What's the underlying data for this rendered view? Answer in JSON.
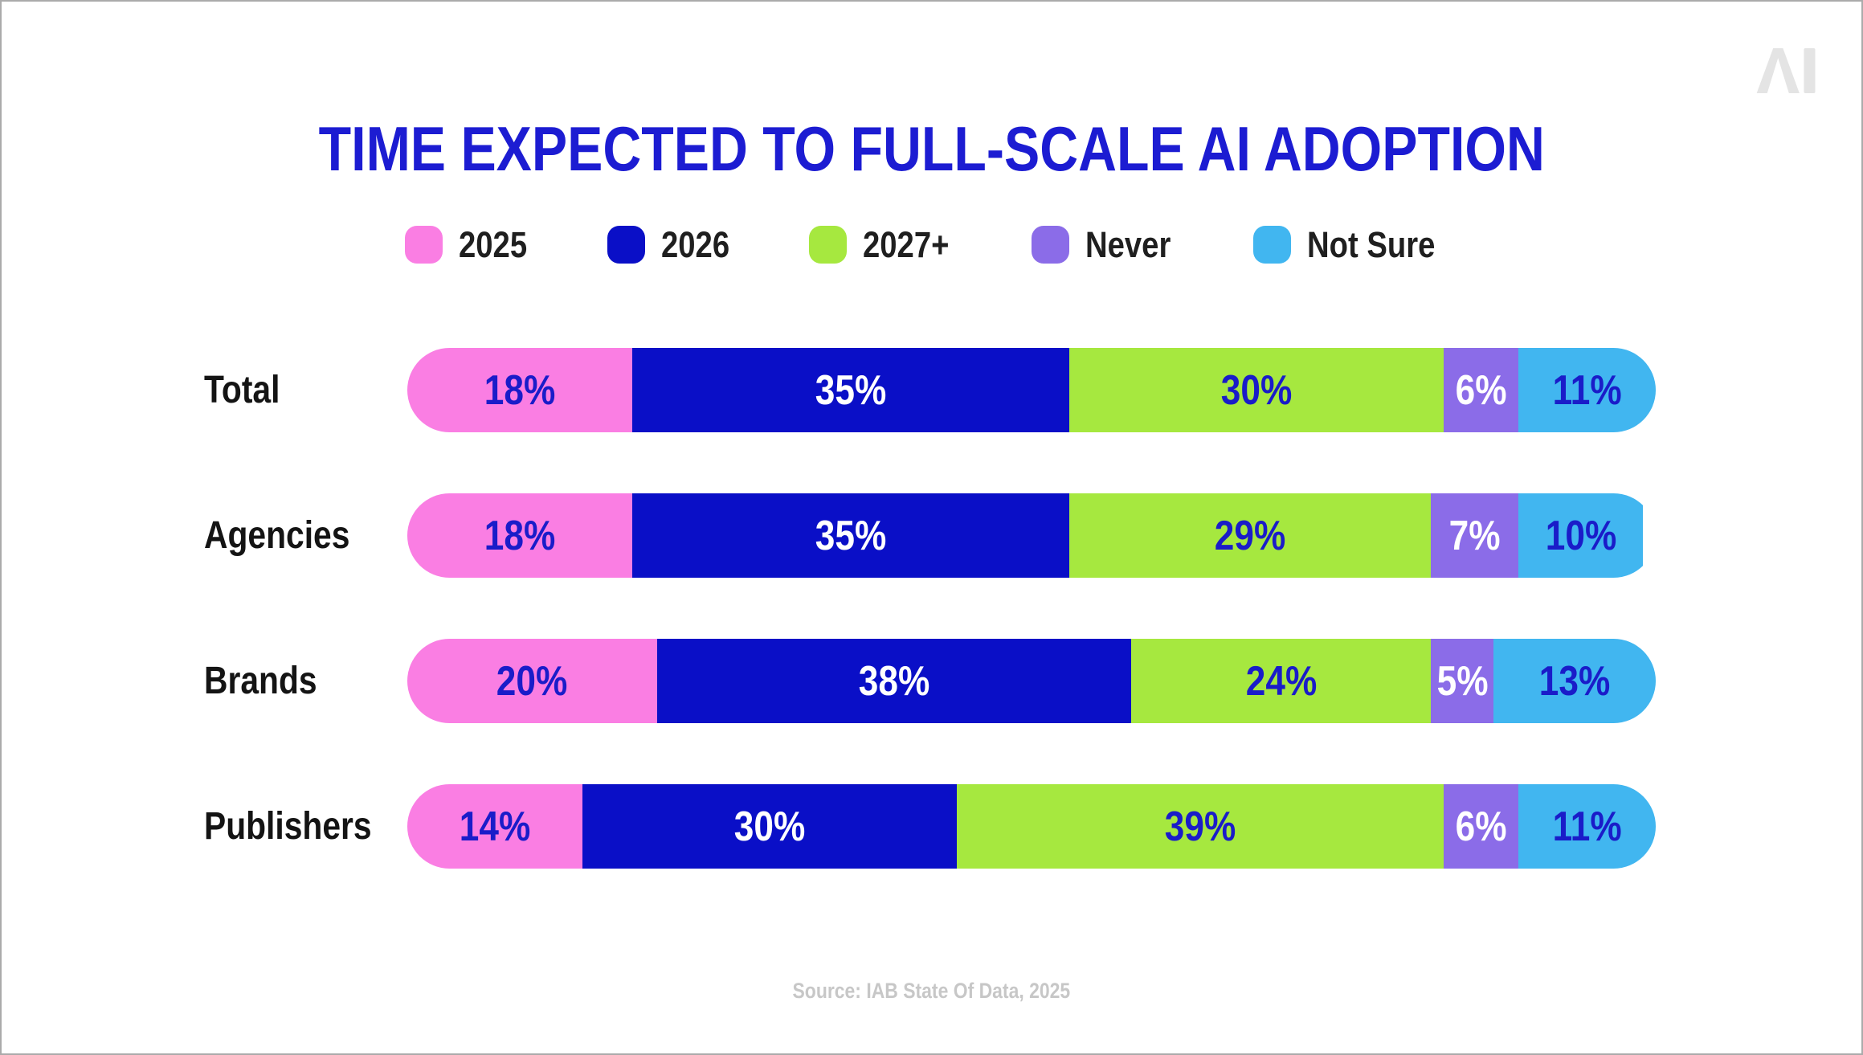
{
  "page": {
    "background": "#ffffff",
    "border_color": "#ababab"
  },
  "logo": {
    "icon": "ai-logo",
    "text": "AI",
    "color": "#e4e4e4"
  },
  "title": {
    "text": "TIME EXPECTED TO FULL-SCALE AI ADOPTION",
    "color": "#1c1cd2"
  },
  "chart_data": {
    "type": "bar",
    "stacked": true,
    "orientation": "horizontal",
    "title": "TIME EXPECTED TO FULL-SCALE AI ADOPTION",
    "categories": [
      "Total",
      "Agencies",
      "Brands",
      "Publishers"
    ],
    "series": [
      {
        "name": "2025",
        "color": "#fa7ee3",
        "label_color": "#1a1cc9",
        "values": [
          18,
          18,
          20,
          14
        ]
      },
      {
        "name": "2026",
        "color": "#0a0fc7",
        "label_color": "#ffffff",
        "values": [
          35,
          35,
          38,
          30
        ]
      },
      {
        "name": "2027+",
        "color": "#a6e83f",
        "label_color": "#1a1cc9",
        "values": [
          30,
          29,
          24,
          39
        ]
      },
      {
        "name": "Never",
        "color": "#8b6ce8",
        "label_color": "#ffffff",
        "values": [
          6,
          7,
          5,
          6
        ]
      },
      {
        "name": "Not Sure",
        "color": "#41b6f0",
        "label_color": "#1a1cc9",
        "values": [
          11,
          10,
          13,
          11
        ]
      }
    ],
    "value_suffix": "%",
    "xlim": [
      0,
      100
    ],
    "legend_position": "top",
    "grid": false,
    "row_label_color": "#141414",
    "legend_label_color": "#1f1f1f"
  },
  "source": {
    "text": "Source: IAB State Of Data, 2025",
    "color": "#c7c7c7"
  }
}
